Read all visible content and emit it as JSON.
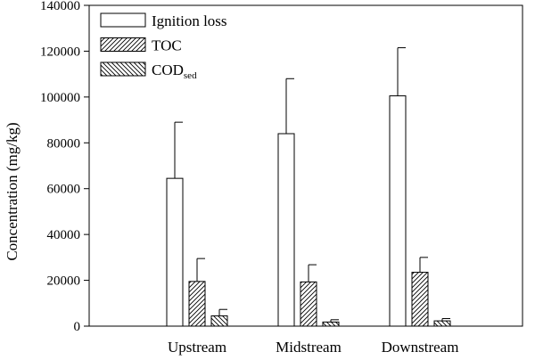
{
  "chart_data": {
    "type": "bar",
    "ylabel": "Concentration (mg/kg)",
    "xlabel": "",
    "ylim": [
      0,
      140000
    ],
    "yticks": [
      0,
      20000,
      40000,
      60000,
      80000,
      100000,
      120000,
      140000
    ],
    "ytick_labels": [
      "0",
      "20000",
      "40000",
      "60000",
      "80000",
      "100000",
      "120000",
      "140000"
    ],
    "categories": [
      "Upstream",
      "Midstream",
      "Downstream"
    ],
    "series": [
      {
        "name": "Ignition loss",
        "sub": "",
        "pattern": "none",
        "values": [
          64500,
          84000,
          100500
        ],
        "errors": [
          24500,
          24000,
          21000
        ]
      },
      {
        "name": "TOC",
        "sub": "",
        "pattern": "diag-right",
        "values": [
          19500,
          19300,
          23500
        ],
        "errors": [
          10000,
          7500,
          6500
        ]
      },
      {
        "name": "COD",
        "sub": "sed",
        "pattern": "diag-left",
        "values": [
          4500,
          1800,
          2300
        ],
        "errors": [
          2800,
          1000,
          1000
        ]
      }
    ],
    "legend_position": "top-left",
    "grid": false
  }
}
